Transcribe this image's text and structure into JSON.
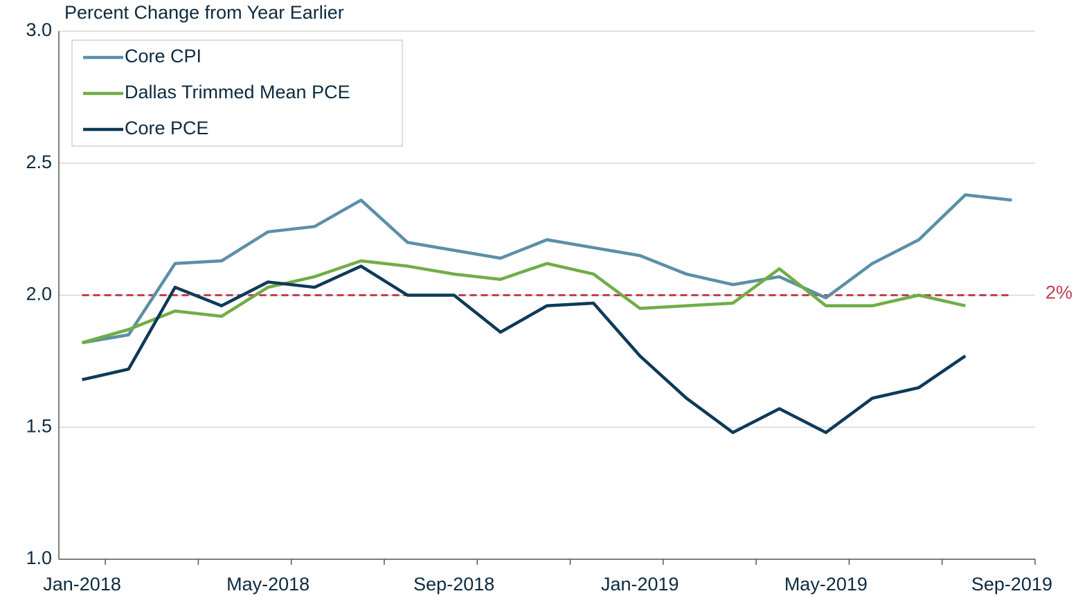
{
  "chart_data": {
    "type": "line",
    "title": "Percent Change  from Year Earlier",
    "categories": [
      "Jan-2018",
      null,
      null,
      null,
      "May-2018",
      null,
      null,
      null,
      "Sep-2018",
      null,
      null,
      null,
      "Jan-2019",
      null,
      null,
      null,
      "May-2019",
      null,
      null,
      null,
      "Sep-2019"
    ],
    "series": [
      {
        "name": "Core CPI",
        "color": "#5b8fa8",
        "values": [
          1.82,
          1.85,
          2.12,
          2.13,
          2.24,
          2.26,
          2.36,
          2.2,
          2.17,
          2.14,
          2.21,
          2.18,
          2.15,
          2.08,
          2.04,
          2.07,
          1.99,
          2.12,
          2.21,
          2.38,
          2.36
        ]
      },
      {
        "name": "Dallas Trimmed Mean PCE",
        "color": "#70ad47",
        "values": [
          1.82,
          1.87,
          1.94,
          1.92,
          2.03,
          2.07,
          2.13,
          2.11,
          2.08,
          2.06,
          2.12,
          2.08,
          1.95,
          1.96,
          1.97,
          2.1,
          1.96,
          1.96,
          2.0,
          1.96,
          null
        ]
      },
      {
        "name": "Core PCE",
        "color": "#0d3a58",
        "values": [
          1.68,
          1.72,
          2.03,
          1.96,
          2.05,
          2.03,
          2.11,
          2.0,
          2.0,
          1.86,
          1.96,
          1.97,
          1.77,
          1.61,
          1.48,
          1.57,
          1.48,
          1.61,
          1.65,
          1.77,
          null
        ]
      }
    ],
    "reference": {
      "value": 2,
      "label": "2%",
      "color": "#c0404f"
    },
    "ylim": [
      1,
      3
    ],
    "yticks": [
      {
        "value": 1,
        "label": "1.0"
      },
      1.5,
      {
        "value": 2,
        "label": "2.0"
      },
      2.5,
      {
        "value": 3,
        "label": "3.0"
      }
    ],
    "grid": true,
    "legend": "upper-left"
  }
}
